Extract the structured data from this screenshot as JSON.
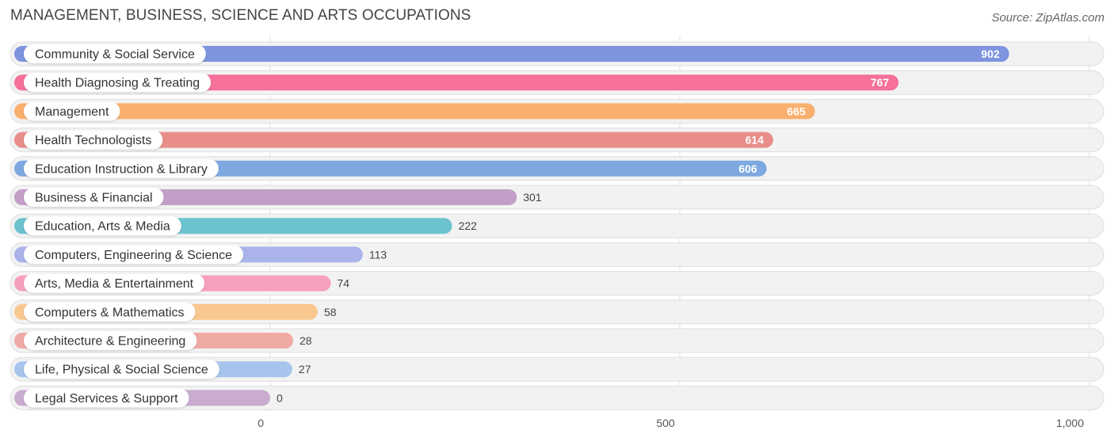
{
  "header": {
    "title": "MANAGEMENT, BUSINESS, SCIENCE AND ARTS OCCUPATIONS",
    "source": "Source: ZipAtlas.com"
  },
  "chart_data": {
    "type": "bar",
    "orientation": "horizontal",
    "title": "MANAGEMENT, BUSINESS, SCIENCE AND ARTS OCCUPATIONS",
    "categories": [
      "Community & Social Service",
      "Health Diagnosing & Treating",
      "Management",
      "Health Technologists",
      "Education Instruction & Library",
      "Business & Financial",
      "Education, Arts & Media",
      "Computers, Engineering & Science",
      "Arts, Media & Entertainment",
      "Computers & Mathematics",
      "Architecture & Engineering",
      "Life, Physical & Social Science",
      "Legal Services & Support"
    ],
    "values": [
      902,
      767,
      665,
      614,
      606,
      301,
      222,
      113,
      74,
      58,
      28,
      27,
      0
    ],
    "colors": [
      "#7f94de",
      "#f5719a",
      "#f9b06e",
      "#e88d88",
      "#7ea9e0",
      "#c29fc6",
      "#6cc3cf",
      "#aab4ea",
      "#f7a0bc",
      "#f9c890",
      "#f0aaa6",
      "#a7c5ec",
      "#c9acd0"
    ],
    "xlim": [
      0,
      1000
    ],
    "xticks": [
      0,
      500,
      1000
    ],
    "xtick_labels": [
      "0",
      "500",
      "1,000"
    ],
    "grid": true
  }
}
